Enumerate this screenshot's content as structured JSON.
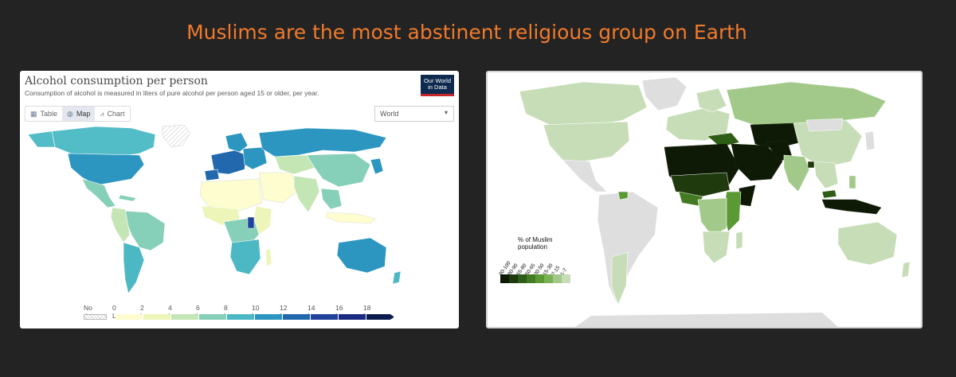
{
  "headline": "Muslims are the most abstinent religious group on Earth",
  "left_panel": {
    "title": "Alcohol consumption per person",
    "subtitle": "Consumption of alcohol is measured in liters of pure alcohol per person aged 15 or older, per year.",
    "logo_line1": "Our World",
    "logo_line2": "in Data",
    "tabs": [
      {
        "label": "Table",
        "icon": "table-icon",
        "active": false
      },
      {
        "label": "Map",
        "icon": "globe-icon",
        "active": true
      },
      {
        "label": "Chart",
        "icon": "line-chart-icon",
        "active": false
      }
    ],
    "region_select": {
      "value": "World"
    },
    "legend": {
      "no_data_label": "No data",
      "ticks": [
        "0 L",
        "2 L",
        "4 L",
        "6 L",
        "8 L",
        "10 L",
        "12 L",
        "14 L",
        "16 L",
        "18 L"
      ],
      "colors": [
        "#fdfdd0",
        "#edf5b9",
        "#c4e6b5",
        "#86cfb8",
        "#4cb8c4",
        "#2c96c0",
        "#2268ad",
        "#20429a",
        "#1a2a80",
        "#0b1c4f"
      ]
    }
  },
  "right_panel": {
    "legend_title_line1": "% of Muslim",
    "legend_title_line2": "population",
    "bins": [
      "90-100",
      "80-90",
      "65-80",
      "50-65",
      "30-50",
      "15-30",
      "7-15",
      "1-7"
    ],
    "colors": [
      "#0e1a06",
      "#1f3a0d",
      "#2e5d16",
      "#437a22",
      "#5b9935",
      "#7ab153",
      "#a3c98a",
      "#c7ddb7"
    ]
  }
}
